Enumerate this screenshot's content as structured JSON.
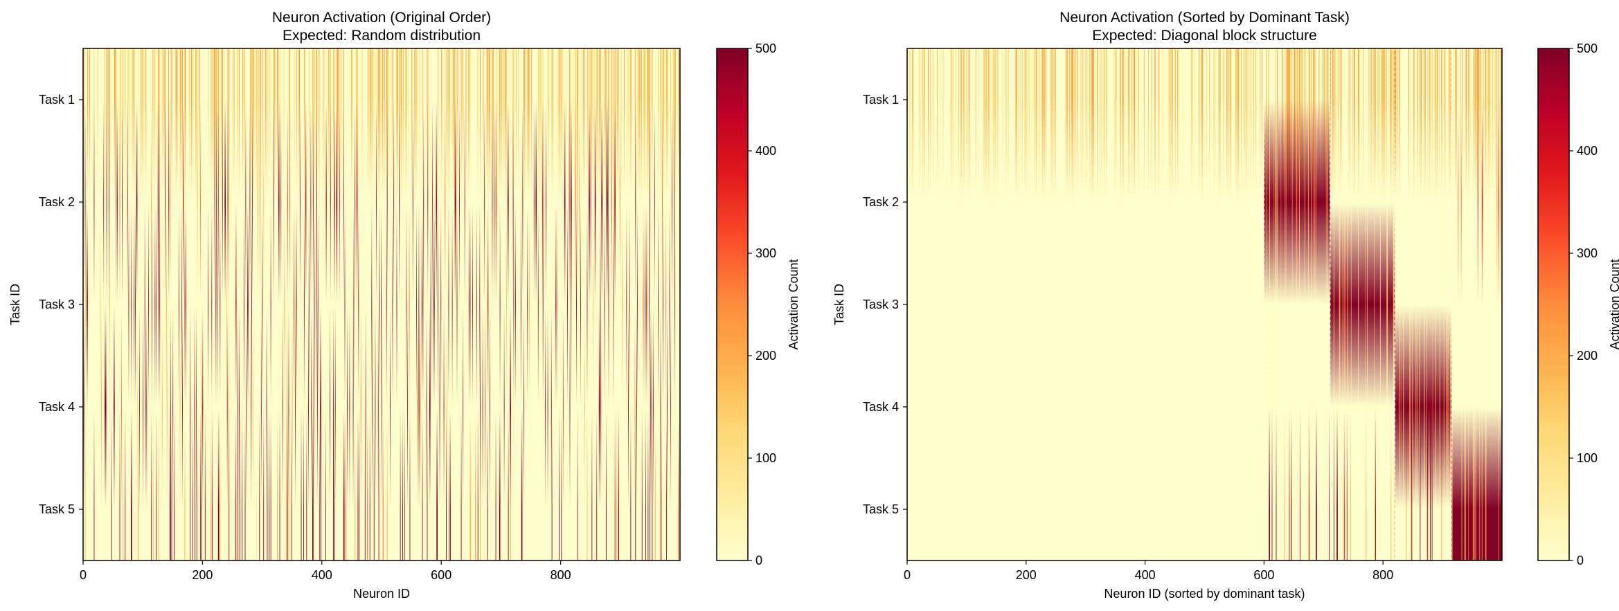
{
  "chart_data": [
    {
      "type": "heatmap",
      "title": "Neuron Activation (Original Order)",
      "subtitle": "Expected: Random distribution",
      "xlabel": "Neuron ID",
      "ylabel": "Task ID",
      "rows": [
        "Task 1",
        "Task 2",
        "Task 3",
        "Task 4",
        "Task 5"
      ],
      "xlim": [
        0,
        1000
      ],
      "xticks": [
        0,
        200,
        400,
        600,
        800
      ],
      "order": "original",
      "colormap": "YlOrRd",
      "vmin": 0,
      "vmax": 500,
      "colorbar": {
        "label": "Activation Count",
        "ticks": [
          0,
          100,
          200,
          300,
          400,
          500
        ]
      }
    },
    {
      "type": "heatmap",
      "title": "Neuron Activation (Sorted by Dominant Task)",
      "subtitle": "Expected: Diagonal block structure",
      "xlabel": "Neuron ID (sorted by dominant task)",
      "ylabel": "Task ID",
      "rows": [
        "Task 1",
        "Task 2",
        "Task 3",
        "Task 4",
        "Task 5"
      ],
      "xlim": [
        0,
        1000
      ],
      "xticks": [
        0,
        200,
        400,
        600,
        800
      ],
      "order": "sorted",
      "dominant_task_ranges": [
        [
          0,
          600
        ],
        [
          600,
          711
        ],
        [
          711,
          820
        ],
        [
          820,
          915
        ],
        [
          915,
          1000
        ]
      ],
      "colormap": "YlOrRd",
      "vmin": 0,
      "vmax": 500,
      "colorbar": {
        "label": "Activation Count",
        "ticks": [
          0,
          100,
          200,
          300,
          400,
          500
        ]
      }
    }
  ],
  "colors": {
    "cmap_stops": [
      "#ffffcc",
      "#ffeda0",
      "#fed976",
      "#feb24c",
      "#fd8d3c",
      "#fc4e2a",
      "#e31a1c",
      "#bd0026",
      "#800026"
    ],
    "axis": "#000000"
  }
}
